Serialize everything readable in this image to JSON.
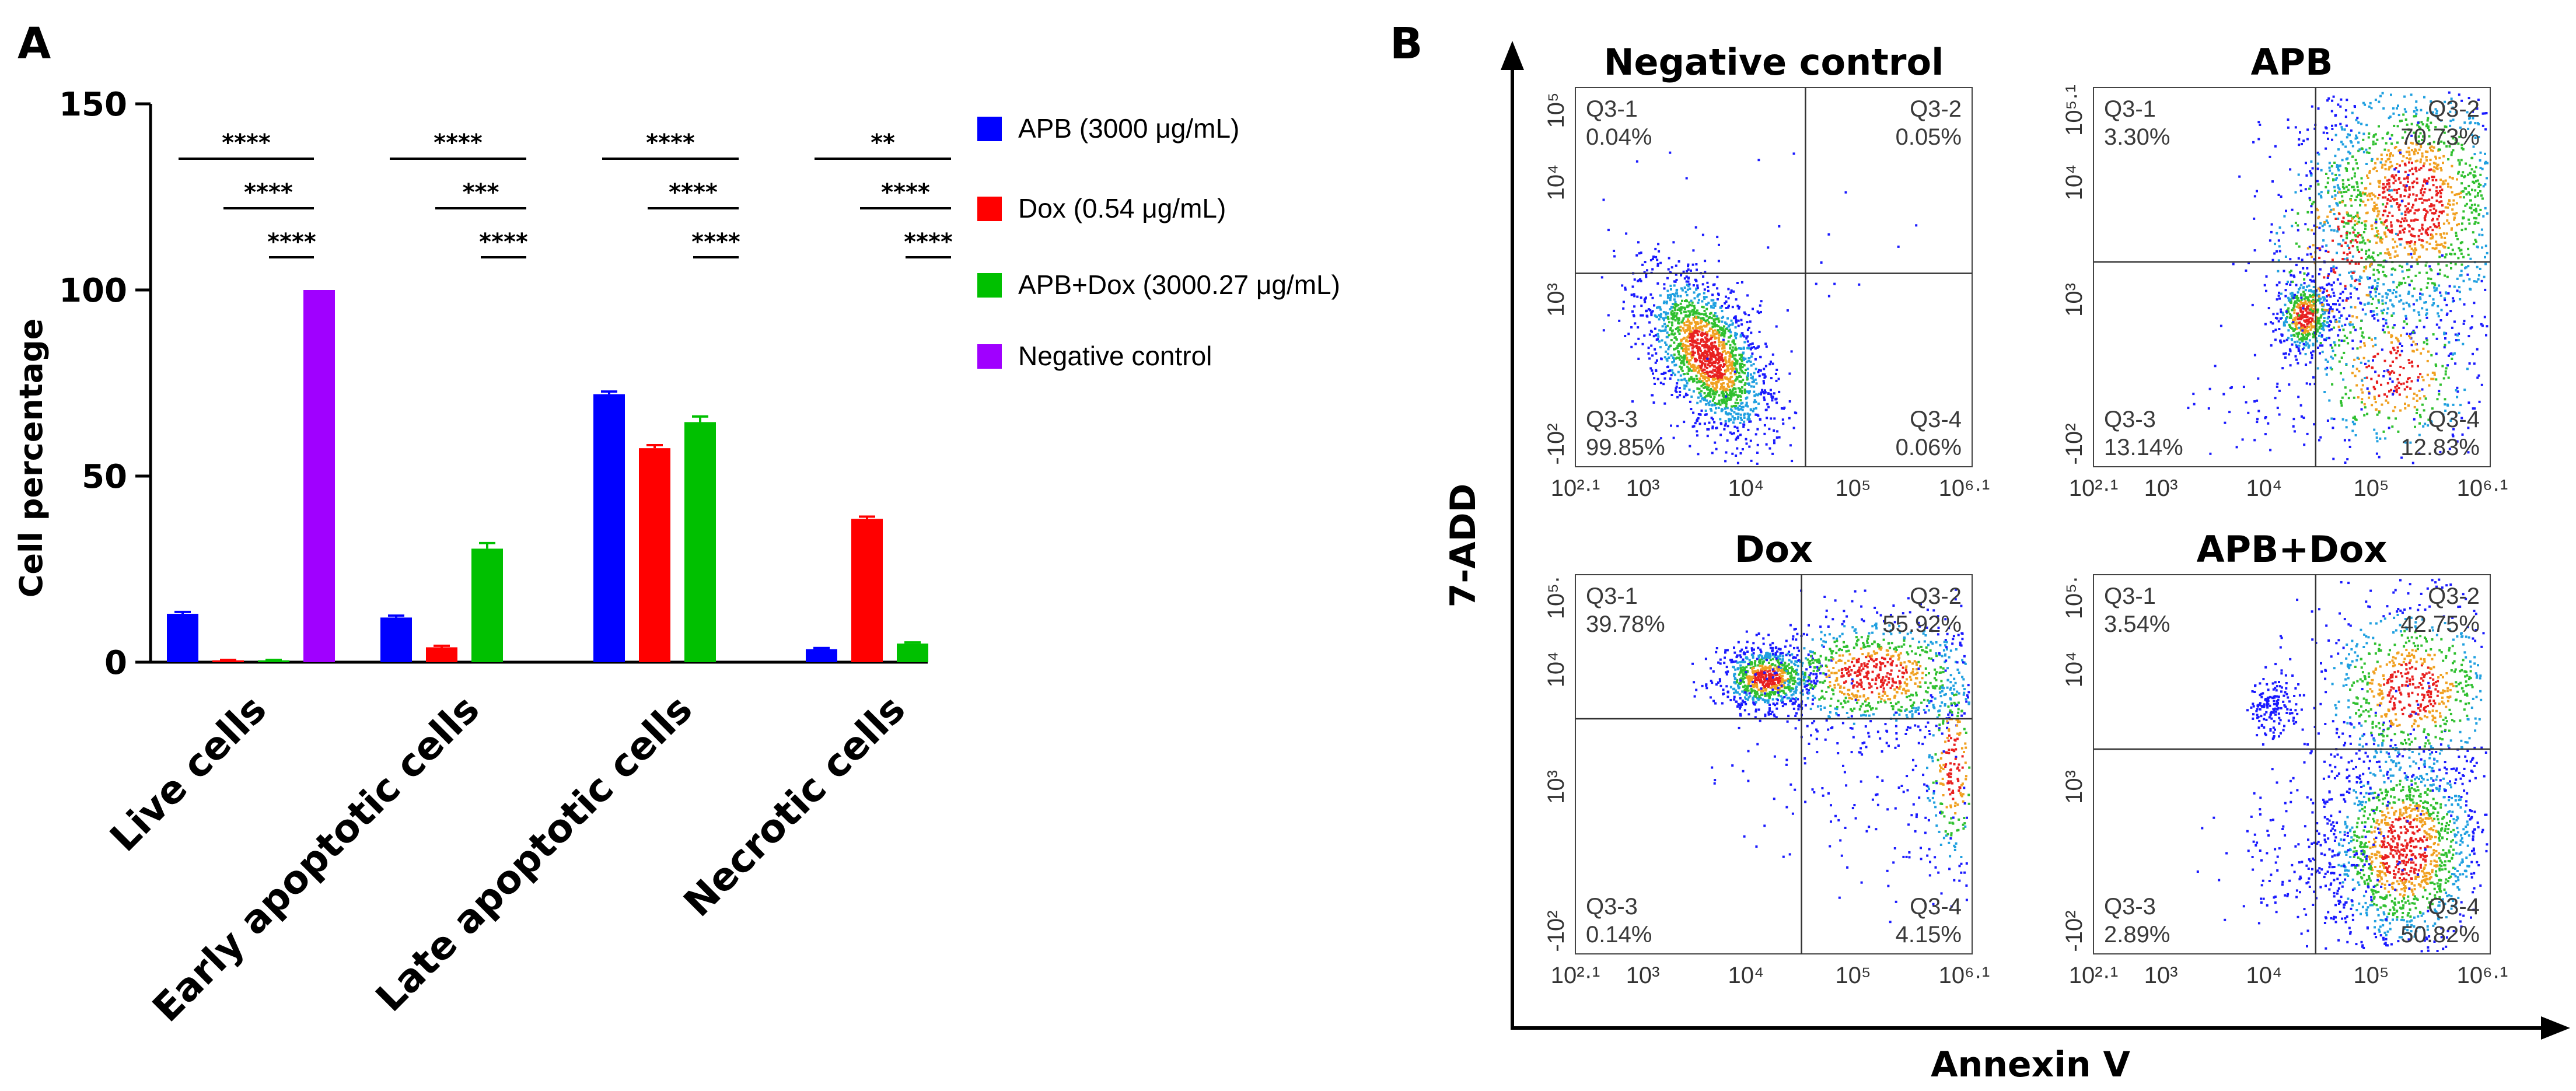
{
  "panel_a": {
    "letter": "A",
    "ylabel": "Cell percentage",
    "yticks": [
      "0",
      "50",
      "100",
      "150"
    ],
    "legend": [
      {
        "label": "APB (3000 μg/mL)",
        "color": "#0000ff"
      },
      {
        "label": "Dox (0.54 μg/mL)",
        "color": "#ff0000"
      },
      {
        "label": "APB+Dox (3000.27 μg/mL)",
        "color": "#00c000"
      },
      {
        "label": "Negative control",
        "color": "#a000ff"
      }
    ],
    "significance": [
      [
        "****",
        "****",
        "****"
      ],
      [
        "****",
        "***",
        "****"
      ],
      [
        "****",
        "****",
        "****"
      ],
      [
        "**",
        "****",
        "****"
      ]
    ]
  },
  "chart_data": {
    "type": "bar",
    "title": "",
    "xlabel": "",
    "ylabel": "Cell percentage",
    "ylim": [
      0,
      150
    ],
    "categories": [
      "Live cells",
      "Early apoptotic cells",
      "Late apoptotic cells",
      "Necrotic cells"
    ],
    "series": [
      {
        "name": "APB (3000 μg/mL)",
        "color": "#0000ff",
        "values": [
          13,
          12,
          72,
          3.5
        ],
        "errors": [
          0.5,
          0.5,
          0.7,
          0.3
        ]
      },
      {
        "name": "Dox (0.54 μg/mL)",
        "color": "#ff0000",
        "values": [
          0.5,
          4,
          57.5,
          38.5
        ],
        "errors": [
          0.1,
          0.4,
          0.8,
          0.6
        ]
      },
      {
        "name": "APB+Dox (3000.27 μg/mL)",
        "color": "#00c000",
        "values": [
          0.5,
          30.5,
          64.5,
          5
        ],
        "errors": [
          0.1,
          1.5,
          1.5,
          0.3
        ]
      },
      {
        "name": "Negative control",
        "color": "#a000ff",
        "values": [
          100,
          null,
          null,
          null
        ],
        "errors": [
          0,
          null,
          null,
          null
        ]
      }
    ]
  },
  "panel_b": {
    "letter": "B",
    "y_axis_title": "7-ADD",
    "x_axis_title": "Annexin V",
    "plots": [
      {
        "title": "Negative control",
        "q1": "Q3-1",
        "q1v": "0.04%",
        "q2": "Q3-2",
        "q2v": "0.05%",
        "q3": "Q3-3",
        "q3v": "99.85%",
        "q4": "Q3-4",
        "q4v": "0.06%",
        "yt_top": "10⁵",
        "yt_mid": "10⁴",
        "yt_low": "10³",
        "yt_bot": "-10²",
        "xt": [
          "10²·¹",
          "10³",
          "10⁴",
          "10⁵",
          "10⁶·¹"
        ]
      },
      {
        "title": "APB",
        "q1": "Q3-1",
        "q1v": "3.30%",
        "q2": "Q3-2",
        "q2v": "70.73%",
        "q3": "Q3-3",
        "q3v": "13.14%",
        "q4": "Q3-4",
        "q4v": "12.83%",
        "yt_top": "10⁵·¹",
        "yt_mid": "10⁴",
        "yt_low": "10³",
        "yt_bot": "-10²",
        "xt": [
          "10²·¹",
          "10³",
          "10⁴",
          "10⁵",
          "10⁶·¹"
        ]
      },
      {
        "title": "Dox",
        "q1": "Q3-1",
        "q1v": "39.78%",
        "q2": "Q3-2",
        "q2v": "55.92%",
        "q3": "Q3-3",
        "q3v": "0.14%",
        "q4": "Q3-4",
        "q4v": "4.15%",
        "yt_top": "10⁵·",
        "yt_mid": "10⁴",
        "yt_low": "10³",
        "yt_bot": "-10²",
        "xt": [
          "10²·¹",
          "10³",
          "10⁴",
          "10⁵",
          "10⁶·¹"
        ]
      },
      {
        "title": "APB+Dox",
        "q1": "Q3-1",
        "q1v": "3.54%",
        "q2": "Q3-2",
        "q2v": "42.75%",
        "q3": "Q3-3",
        "q3v": "2.89%",
        "q4": "Q3-4",
        "q4v": "50.82%",
        "yt_top": "10⁵·",
        "yt_mid": "10⁴",
        "yt_low": "10³",
        "yt_bot": "-10²",
        "xt": [
          "10²·¹",
          "10³",
          "10⁴",
          "10⁵",
          "10⁶·¹"
        ]
      }
    ]
  }
}
